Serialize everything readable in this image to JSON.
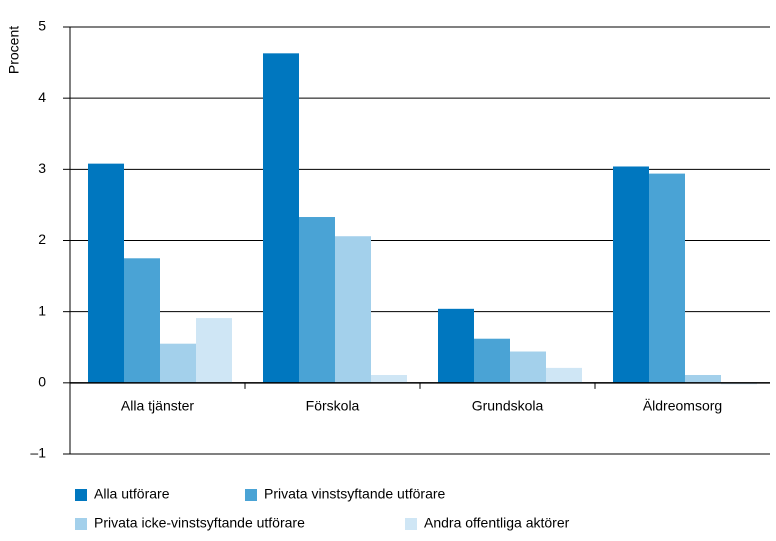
{
  "chart_data": {
    "type": "bar",
    "y_label": "Procent",
    "categories": [
      "Alla tjänster",
      "Förskola",
      "Grundskola",
      "Äldreomsorg"
    ],
    "series": [
      {
        "name": "Alla utförare",
        "color": "#0077bf",
        "values": [
          3.08,
          4.63,
          1.04,
          3.04
        ]
      },
      {
        "name": "Privata vinstsyftande utförare",
        "color": "#4aa3d5",
        "values": [
          1.75,
          2.33,
          0.62,
          2.94
        ]
      },
      {
        "name": "Privata icke-vinstsyftande utförare",
        "color": "#a3d0eb",
        "values": [
          0.55,
          2.06,
          0.44,
          0.11
        ]
      },
      {
        "name": "Andra offentliga aktörer",
        "color": "#cfe6f5",
        "values": [
          0.91,
          0.11,
          0.21,
          -0.02
        ]
      }
    ],
    "ylim": [
      -1,
      5
    ],
    "yticks": [
      {
        "value": -1,
        "label": "–1"
      },
      0,
      1,
      2,
      3,
      4,
      5
    ],
    "grid": true
  }
}
